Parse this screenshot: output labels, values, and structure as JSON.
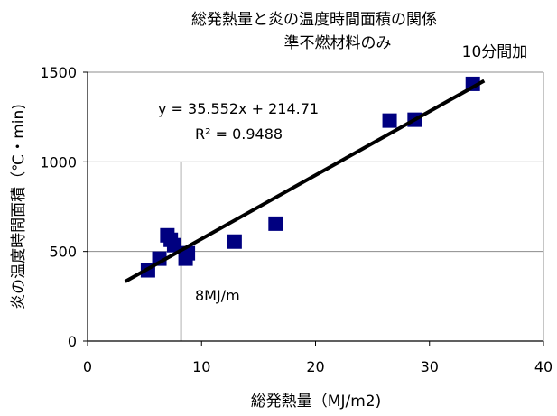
{
  "chart_data": {
    "type": "scatter",
    "title": "総発熱量と炎の温度時間面積の関係",
    "subtitle": "準不燃材料のみ",
    "corner_note": "10分間加",
    "xlabel": "総発熱量（MJ/m2)",
    "ylabel": "炎の温度時間面積（℃・min)",
    "xlim": [
      0,
      40
    ],
    "ylim": [
      0,
      1500
    ],
    "x_ticks": [
      0,
      10,
      20,
      30,
      40
    ],
    "y_ticks": [
      0,
      500,
      1000,
      1500
    ],
    "grid_y": true,
    "marker_color": "#000080",
    "line_color": "#000000",
    "series": [
      {
        "points": [
          {
            "x": 5.3,
            "y": 395
          },
          {
            "x": 6.3,
            "y": 460
          },
          {
            "x": 7.0,
            "y": 590
          },
          {
            "x": 7.3,
            "y": 565
          },
          {
            "x": 7.6,
            "y": 535
          },
          {
            "x": 8.6,
            "y": 460
          },
          {
            "x": 8.8,
            "y": 490
          },
          {
            "x": 12.9,
            "y": 555
          },
          {
            "x": 16.5,
            "y": 655
          },
          {
            "x": 26.5,
            "y": 1230
          },
          {
            "x": 28.7,
            "y": 1235
          },
          {
            "x": 33.8,
            "y": 1435
          }
        ]
      }
    ],
    "trendline": {
      "slope": 35.552,
      "intercept": 214.71,
      "x_range": [
        3.3,
        34.8
      ],
      "equation_label": "y = 35.552x + 214.71",
      "r2_label": "R² = 0.9488"
    },
    "reference_line": {
      "x": 8.2,
      "y_range": [
        0,
        1000
      ],
      "label": "8MJ/m"
    }
  }
}
